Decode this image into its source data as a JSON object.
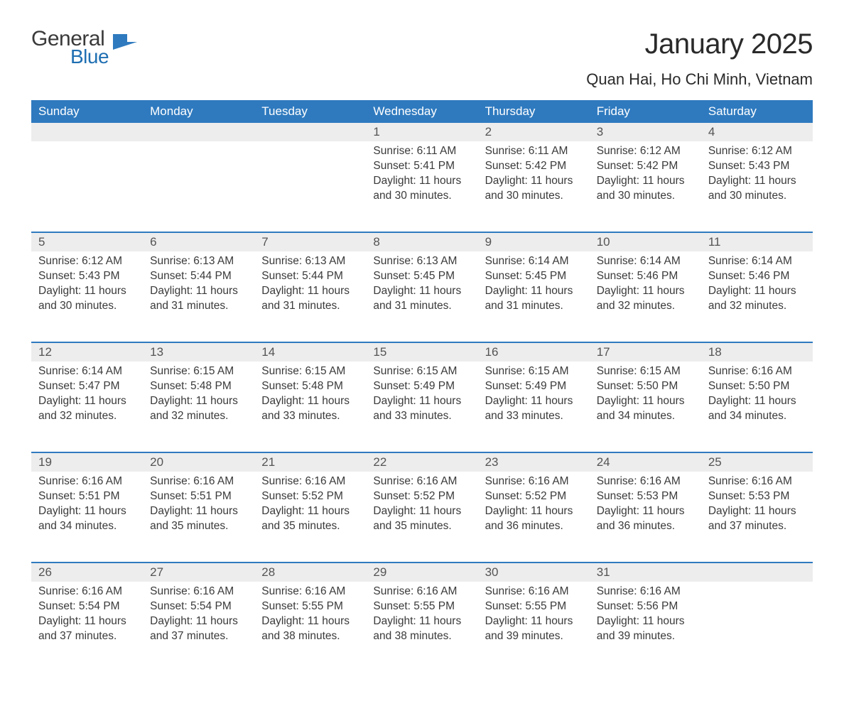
{
  "logo": {
    "general": "General",
    "blue": "Blue",
    "flag_color": "#2f7abf"
  },
  "title": "January 2025",
  "location": "Quan Hai, Ho Chi Minh, Vietnam",
  "colors": {
    "header_bg": "#2f7abf",
    "header_text": "#ffffff",
    "daynum_bg": "#ededed",
    "row_border": "#2f7abf",
    "body_text": "#3a3a3a",
    "daynum_text": "#545454",
    "page_bg": "#ffffff"
  },
  "typography": {
    "title_fontsize": 40,
    "location_fontsize": 22,
    "weekday_fontsize": 17,
    "daynum_fontsize": 17,
    "cell_fontsize": 15.5,
    "font_family": "Arial"
  },
  "weekdays": [
    "Sunday",
    "Monday",
    "Tuesday",
    "Wednesday",
    "Thursday",
    "Friday",
    "Saturday"
  ],
  "weeks": [
    [
      null,
      null,
      null,
      {
        "n": "1",
        "sr": "6:11 AM",
        "ss": "5:41 PM",
        "dl": "11 hours and 30 minutes."
      },
      {
        "n": "2",
        "sr": "6:11 AM",
        "ss": "5:42 PM",
        "dl": "11 hours and 30 minutes."
      },
      {
        "n": "3",
        "sr": "6:12 AM",
        "ss": "5:42 PM",
        "dl": "11 hours and 30 minutes."
      },
      {
        "n": "4",
        "sr": "6:12 AM",
        "ss": "5:43 PM",
        "dl": "11 hours and 30 minutes."
      }
    ],
    [
      {
        "n": "5",
        "sr": "6:12 AM",
        "ss": "5:43 PM",
        "dl": "11 hours and 30 minutes."
      },
      {
        "n": "6",
        "sr": "6:13 AM",
        "ss": "5:44 PM",
        "dl": "11 hours and 31 minutes."
      },
      {
        "n": "7",
        "sr": "6:13 AM",
        "ss": "5:44 PM",
        "dl": "11 hours and 31 minutes."
      },
      {
        "n": "8",
        "sr": "6:13 AM",
        "ss": "5:45 PM",
        "dl": "11 hours and 31 minutes."
      },
      {
        "n": "9",
        "sr": "6:14 AM",
        "ss": "5:45 PM",
        "dl": "11 hours and 31 minutes."
      },
      {
        "n": "10",
        "sr": "6:14 AM",
        "ss": "5:46 PM",
        "dl": "11 hours and 32 minutes."
      },
      {
        "n": "11",
        "sr": "6:14 AM",
        "ss": "5:46 PM",
        "dl": "11 hours and 32 minutes."
      }
    ],
    [
      {
        "n": "12",
        "sr": "6:14 AM",
        "ss": "5:47 PM",
        "dl": "11 hours and 32 minutes."
      },
      {
        "n": "13",
        "sr": "6:15 AM",
        "ss": "5:48 PM",
        "dl": "11 hours and 32 minutes."
      },
      {
        "n": "14",
        "sr": "6:15 AM",
        "ss": "5:48 PM",
        "dl": "11 hours and 33 minutes."
      },
      {
        "n": "15",
        "sr": "6:15 AM",
        "ss": "5:49 PM",
        "dl": "11 hours and 33 minutes."
      },
      {
        "n": "16",
        "sr": "6:15 AM",
        "ss": "5:49 PM",
        "dl": "11 hours and 33 minutes."
      },
      {
        "n": "17",
        "sr": "6:15 AM",
        "ss": "5:50 PM",
        "dl": "11 hours and 34 minutes."
      },
      {
        "n": "18",
        "sr": "6:16 AM",
        "ss": "5:50 PM",
        "dl": "11 hours and 34 minutes."
      }
    ],
    [
      {
        "n": "19",
        "sr": "6:16 AM",
        "ss": "5:51 PM",
        "dl": "11 hours and 34 minutes."
      },
      {
        "n": "20",
        "sr": "6:16 AM",
        "ss": "5:51 PM",
        "dl": "11 hours and 35 minutes."
      },
      {
        "n": "21",
        "sr": "6:16 AM",
        "ss": "5:52 PM",
        "dl": "11 hours and 35 minutes."
      },
      {
        "n": "22",
        "sr": "6:16 AM",
        "ss": "5:52 PM",
        "dl": "11 hours and 35 minutes."
      },
      {
        "n": "23",
        "sr": "6:16 AM",
        "ss": "5:52 PM",
        "dl": "11 hours and 36 minutes."
      },
      {
        "n": "24",
        "sr": "6:16 AM",
        "ss": "5:53 PM",
        "dl": "11 hours and 36 minutes."
      },
      {
        "n": "25",
        "sr": "6:16 AM",
        "ss": "5:53 PM",
        "dl": "11 hours and 37 minutes."
      }
    ],
    [
      {
        "n": "26",
        "sr": "6:16 AM",
        "ss": "5:54 PM",
        "dl": "11 hours and 37 minutes."
      },
      {
        "n": "27",
        "sr": "6:16 AM",
        "ss": "5:54 PM",
        "dl": "11 hours and 37 minutes."
      },
      {
        "n": "28",
        "sr": "6:16 AM",
        "ss": "5:55 PM",
        "dl": "11 hours and 38 minutes."
      },
      {
        "n": "29",
        "sr": "6:16 AM",
        "ss": "5:55 PM",
        "dl": "11 hours and 38 minutes."
      },
      {
        "n": "30",
        "sr": "6:16 AM",
        "ss": "5:55 PM",
        "dl": "11 hours and 39 minutes."
      },
      {
        "n": "31",
        "sr": "6:16 AM",
        "ss": "5:56 PM",
        "dl": "11 hours and 39 minutes."
      },
      null
    ]
  ],
  "labels": {
    "sunrise": "Sunrise: ",
    "sunset": "Sunset: ",
    "daylight": "Daylight: "
  }
}
